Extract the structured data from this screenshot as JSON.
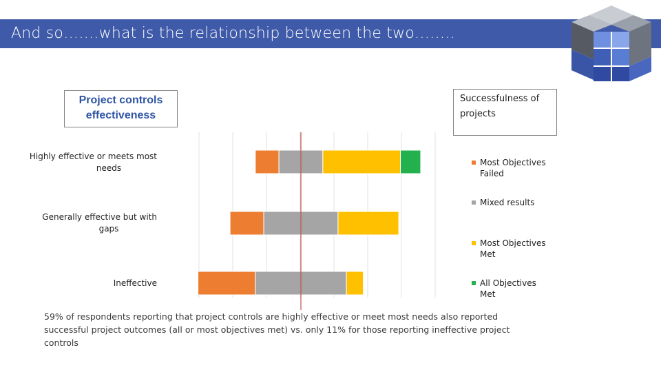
{
  "slide": {
    "title": "And so…….what is the relationship between the two……..",
    "left_box_label": "Project controls effectiveness",
    "right_box_label": "Successfulness of projects",
    "caption": "59% of respondents reporting that project controls are highly effective or meet most needs also reported successful project outcomes (all or most objectives met) vs. only 11% for those reporting ineffective project controls"
  },
  "colors": {
    "title_bar": "#3f5aa8",
    "most_failed": "#ed7d31",
    "mixed": "#a5a5a5",
    "most_met": "#ffc000",
    "all_met": "#22b14c",
    "reference_line": "#c0504d"
  },
  "chart_data": {
    "type": "bar",
    "orientation": "horizontal",
    "stacked": "diverging",
    "categories": [
      "Highly effective or meets most needs",
      "Generally effective but with gaps",
      "Ineffective"
    ],
    "series": [
      {
        "name": "Most Objectives Failed",
        "values": [
          7,
          10,
          17
        ]
      },
      {
        "name": "Mixed results",
        "values": [
          13,
          22,
          27
        ]
      },
      {
        "name": "Most Objectives Met",
        "values": [
          23,
          18,
          5
        ]
      },
      {
        "name": "All Objectives Met",
        "values": [
          6,
          0,
          0
        ]
      }
    ],
    "reference_line": "centre divider",
    "grid": true,
    "legend_position": "right"
  }
}
